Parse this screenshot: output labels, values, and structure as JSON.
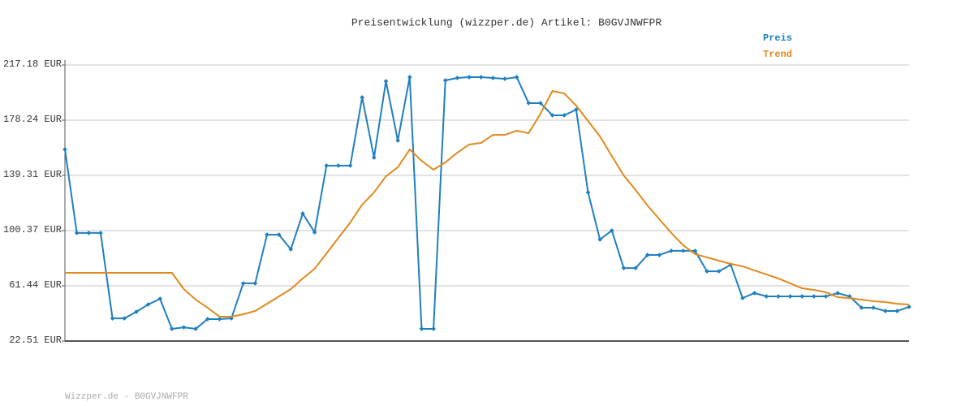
{
  "chart_data": {
    "type": "line",
    "title": "Preisentwicklung (wizzper.de) Artikel: B0GVJNWFPR",
    "footer": "Wizzper.de - B0GVJNWFPR",
    "categories": [
      null,
      null,
      null,
      null,
      null,
      null,
      null,
      null,
      null,
      null,
      null,
      null,
      null,
      null,
      null,
      null,
      null,
      null,
      null,
      null,
      null,
      null,
      null,
      null,
      null,
      null,
      null,
      null,
      null,
      null,
      null,
      null,
      null,
      null,
      null,
      null,
      null,
      null,
      null,
      null,
      null,
      null,
      null,
      null,
      null,
      null,
      null,
      null,
      null,
      null,
      null,
      null,
      null,
      null,
      null,
      null,
      null,
      null,
      null,
      null,
      null,
      null,
      null,
      null,
      null,
      null,
      null,
      null,
      null,
      null,
      null,
      null
    ],
    "series": [
      {
        "name": "Preis",
        "color": "#1f7fbf",
        "markers": true,
        "values": [
          157.6,
          98.7,
          98.7,
          98.7,
          38.5,
          38.5,
          43.1,
          48.3,
          52.3,
          31.1,
          32.2,
          31.1,
          38.0,
          38.0,
          38.5,
          63.2,
          63.2,
          97.5,
          97.5,
          87.2,
          112.4,
          99.2,
          146.2,
          146.2,
          146.2,
          194.3,
          151.9,
          205.7,
          163.9,
          208.6,
          31.1,
          31.1,
          206.3,
          208.0,
          208.6,
          208.6,
          208.0,
          207.4,
          208.6,
          190.3,
          190.3,
          181.7,
          181.7,
          185.7,
          127.3,
          94.1,
          100.4,
          74.0,
          74.0,
          83.2,
          83.2,
          86.1,
          86.1,
          86.1,
          71.7,
          71.7,
          76.3,
          52.8,
          56.3,
          54.0,
          54.0,
          54.0,
          54.0,
          54.0,
          54.0,
          56.3,
          54.0,
          46.0,
          46.0,
          43.7,
          43.7,
          46.6
        ]
      },
      {
        "name": "Trend",
        "color": "#e08a1e",
        "markers": false,
        "values": [
          70.6,
          70.6,
          70.6,
          70.6,
          70.6,
          70.6,
          70.6,
          70.6,
          70.6,
          70.6,
          59.1,
          51.7,
          46.0,
          39.7,
          39.7,
          41.4,
          43.7,
          48.8,
          54.0,
          59.1,
          66.6,
          73.5,
          84.3,
          95.2,
          106.1,
          118.7,
          127.3,
          138.7,
          145.0,
          157.6,
          149.6,
          143.3,
          148.5,
          155.3,
          161.1,
          162.2,
          167.9,
          167.9,
          170.8,
          169.1,
          182.8,
          198.8,
          197.1,
          188.5,
          177.7,
          166.8,
          153.0,
          139.3,
          129.0,
          118.1,
          108.4,
          98.7,
          90.1,
          83.8,
          81.5,
          79.2,
          76.9,
          75.2,
          72.3,
          69.5,
          66.6,
          63.2,
          59.7,
          58.6,
          56.9,
          53.4,
          52.8,
          51.7,
          50.6,
          50.0,
          48.8,
          48.3
        ]
      }
    ],
    "ylim": [
      22.51,
      217.18
    ],
    "yticks": [
      {
        "value": 22.51,
        "label": "22.51 EUR"
      },
      {
        "value": 61.44,
        "label": "61.44 EUR"
      },
      {
        "value": 100.37,
        "label": "100.37 EUR"
      },
      {
        "value": 139.31,
        "label": "139.31 EUR"
      },
      {
        "value": 178.24,
        "label": "178.24 EUR"
      },
      {
        "value": 217.18,
        "label": "217.18 EUR"
      }
    ],
    "grid": true
  }
}
